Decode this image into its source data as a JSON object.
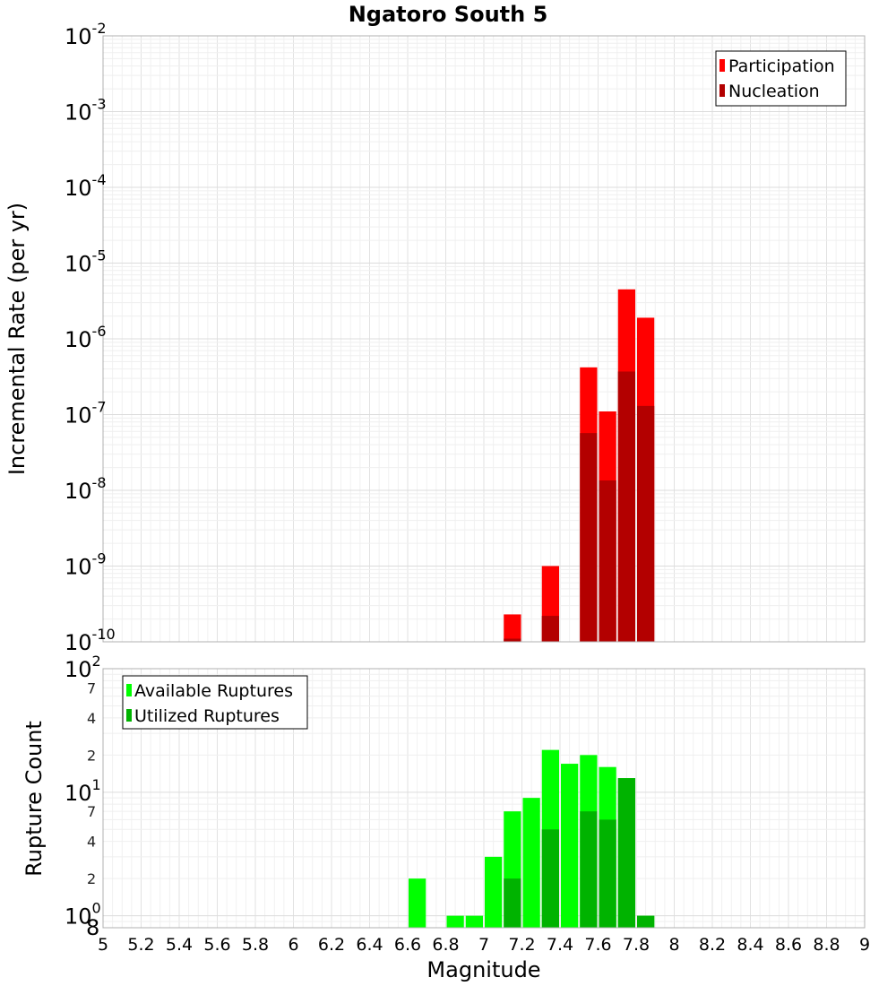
{
  "chart_data": [
    {
      "type": "bar",
      "title": "Ngatoro South 5",
      "xlabel": "",
      "ylabel": "Incremental Rate (per yr)",
      "xlim": [
        5,
        9
      ],
      "ylim": [
        1e-10,
        0.01
      ],
      "yscale": "log",
      "y_tick_labels": [
        {
          "base": "10",
          "exp": "-2"
        },
        {
          "base": "10",
          "exp": "-3"
        },
        {
          "base": "10",
          "exp": "-4"
        },
        {
          "base": "10",
          "exp": "-5"
        },
        {
          "base": "10",
          "exp": "-6"
        },
        {
          "base": "10",
          "exp": "-7"
        },
        {
          "base": "10",
          "exp": "-8"
        },
        {
          "base": "10",
          "exp": "-9"
        },
        {
          "base": "10",
          "exp": "-10"
        }
      ],
      "legend": {
        "position": "top-right",
        "entries": [
          "Participation",
          "Nucleation"
        ]
      },
      "series": [
        {
          "name": "Participation",
          "color": "#ff0000",
          "x": [
            7.15,
            7.35,
            7.55,
            7.65,
            7.75,
            7.85
          ],
          "values": [
            2.3e-10,
            1e-09,
            4.2e-07,
            1.1e-07,
            4.5e-06,
            1.9e-06
          ]
        },
        {
          "name": "Nucleation",
          "color": "#b30000",
          "x": [
            7.15,
            7.35,
            7.55,
            7.65,
            7.75,
            7.85
          ],
          "values": [
            1.1e-10,
            2.2e-10,
            5.7e-08,
            1.35e-08,
            3.7e-07,
            1.3e-07
          ]
        }
      ]
    },
    {
      "type": "bar",
      "title": "",
      "xlabel": "Magnitude",
      "ylabel": "Rupture Count",
      "xlim": [
        5,
        9
      ],
      "ylim": [
        0.8,
        100
      ],
      "yscale": "log",
      "y_tick_labels": [
        {
          "base": "10",
          "exp": "2"
        },
        {
          "base": "10",
          "exp": "1"
        },
        {
          "base": "10",
          "exp": "0"
        }
      ],
      "y_minor_labels": [
        {
          "value": 70,
          "label": "7"
        },
        {
          "value": 40,
          "label": "4"
        },
        {
          "value": 20,
          "label": "2"
        },
        {
          "value": 7,
          "label": "7"
        },
        {
          "value": 4,
          "label": "4"
        },
        {
          "value": 2,
          "label": "2"
        },
        {
          "value": 0.8,
          "label": "8"
        }
      ],
      "x_tick_labels": [
        "5",
        "5.2",
        "5.4",
        "5.6",
        "5.8",
        "6",
        "6.2",
        "6.4",
        "6.6",
        "6.8",
        "7",
        "7.2",
        "7.4",
        "7.6",
        "7.8",
        "8",
        "8.2",
        "8.4",
        "8.6",
        "8.8",
        "9"
      ],
      "legend": {
        "position": "top-left",
        "entries": [
          "Available Ruptures",
          "Utilized Ruptures"
        ]
      },
      "series": [
        {
          "name": "Available Ruptures",
          "color": "#00ff00",
          "x": [
            6.65,
            6.85,
            6.95,
            7.05,
            7.15,
            7.25,
            7.35,
            7.45,
            7.55,
            7.65,
            7.75,
            7.85
          ],
          "values": [
            2,
            1,
            1,
            3,
            7,
            9,
            22,
            17,
            20,
            16,
            13,
            1
          ]
        },
        {
          "name": "Utilized Ruptures",
          "color": "#00b300",
          "x": [
            7.15,
            7.35,
            7.55,
            7.65,
            7.75,
            7.85
          ],
          "values": [
            2,
            5,
            7,
            6,
            13,
            1
          ]
        }
      ]
    }
  ]
}
